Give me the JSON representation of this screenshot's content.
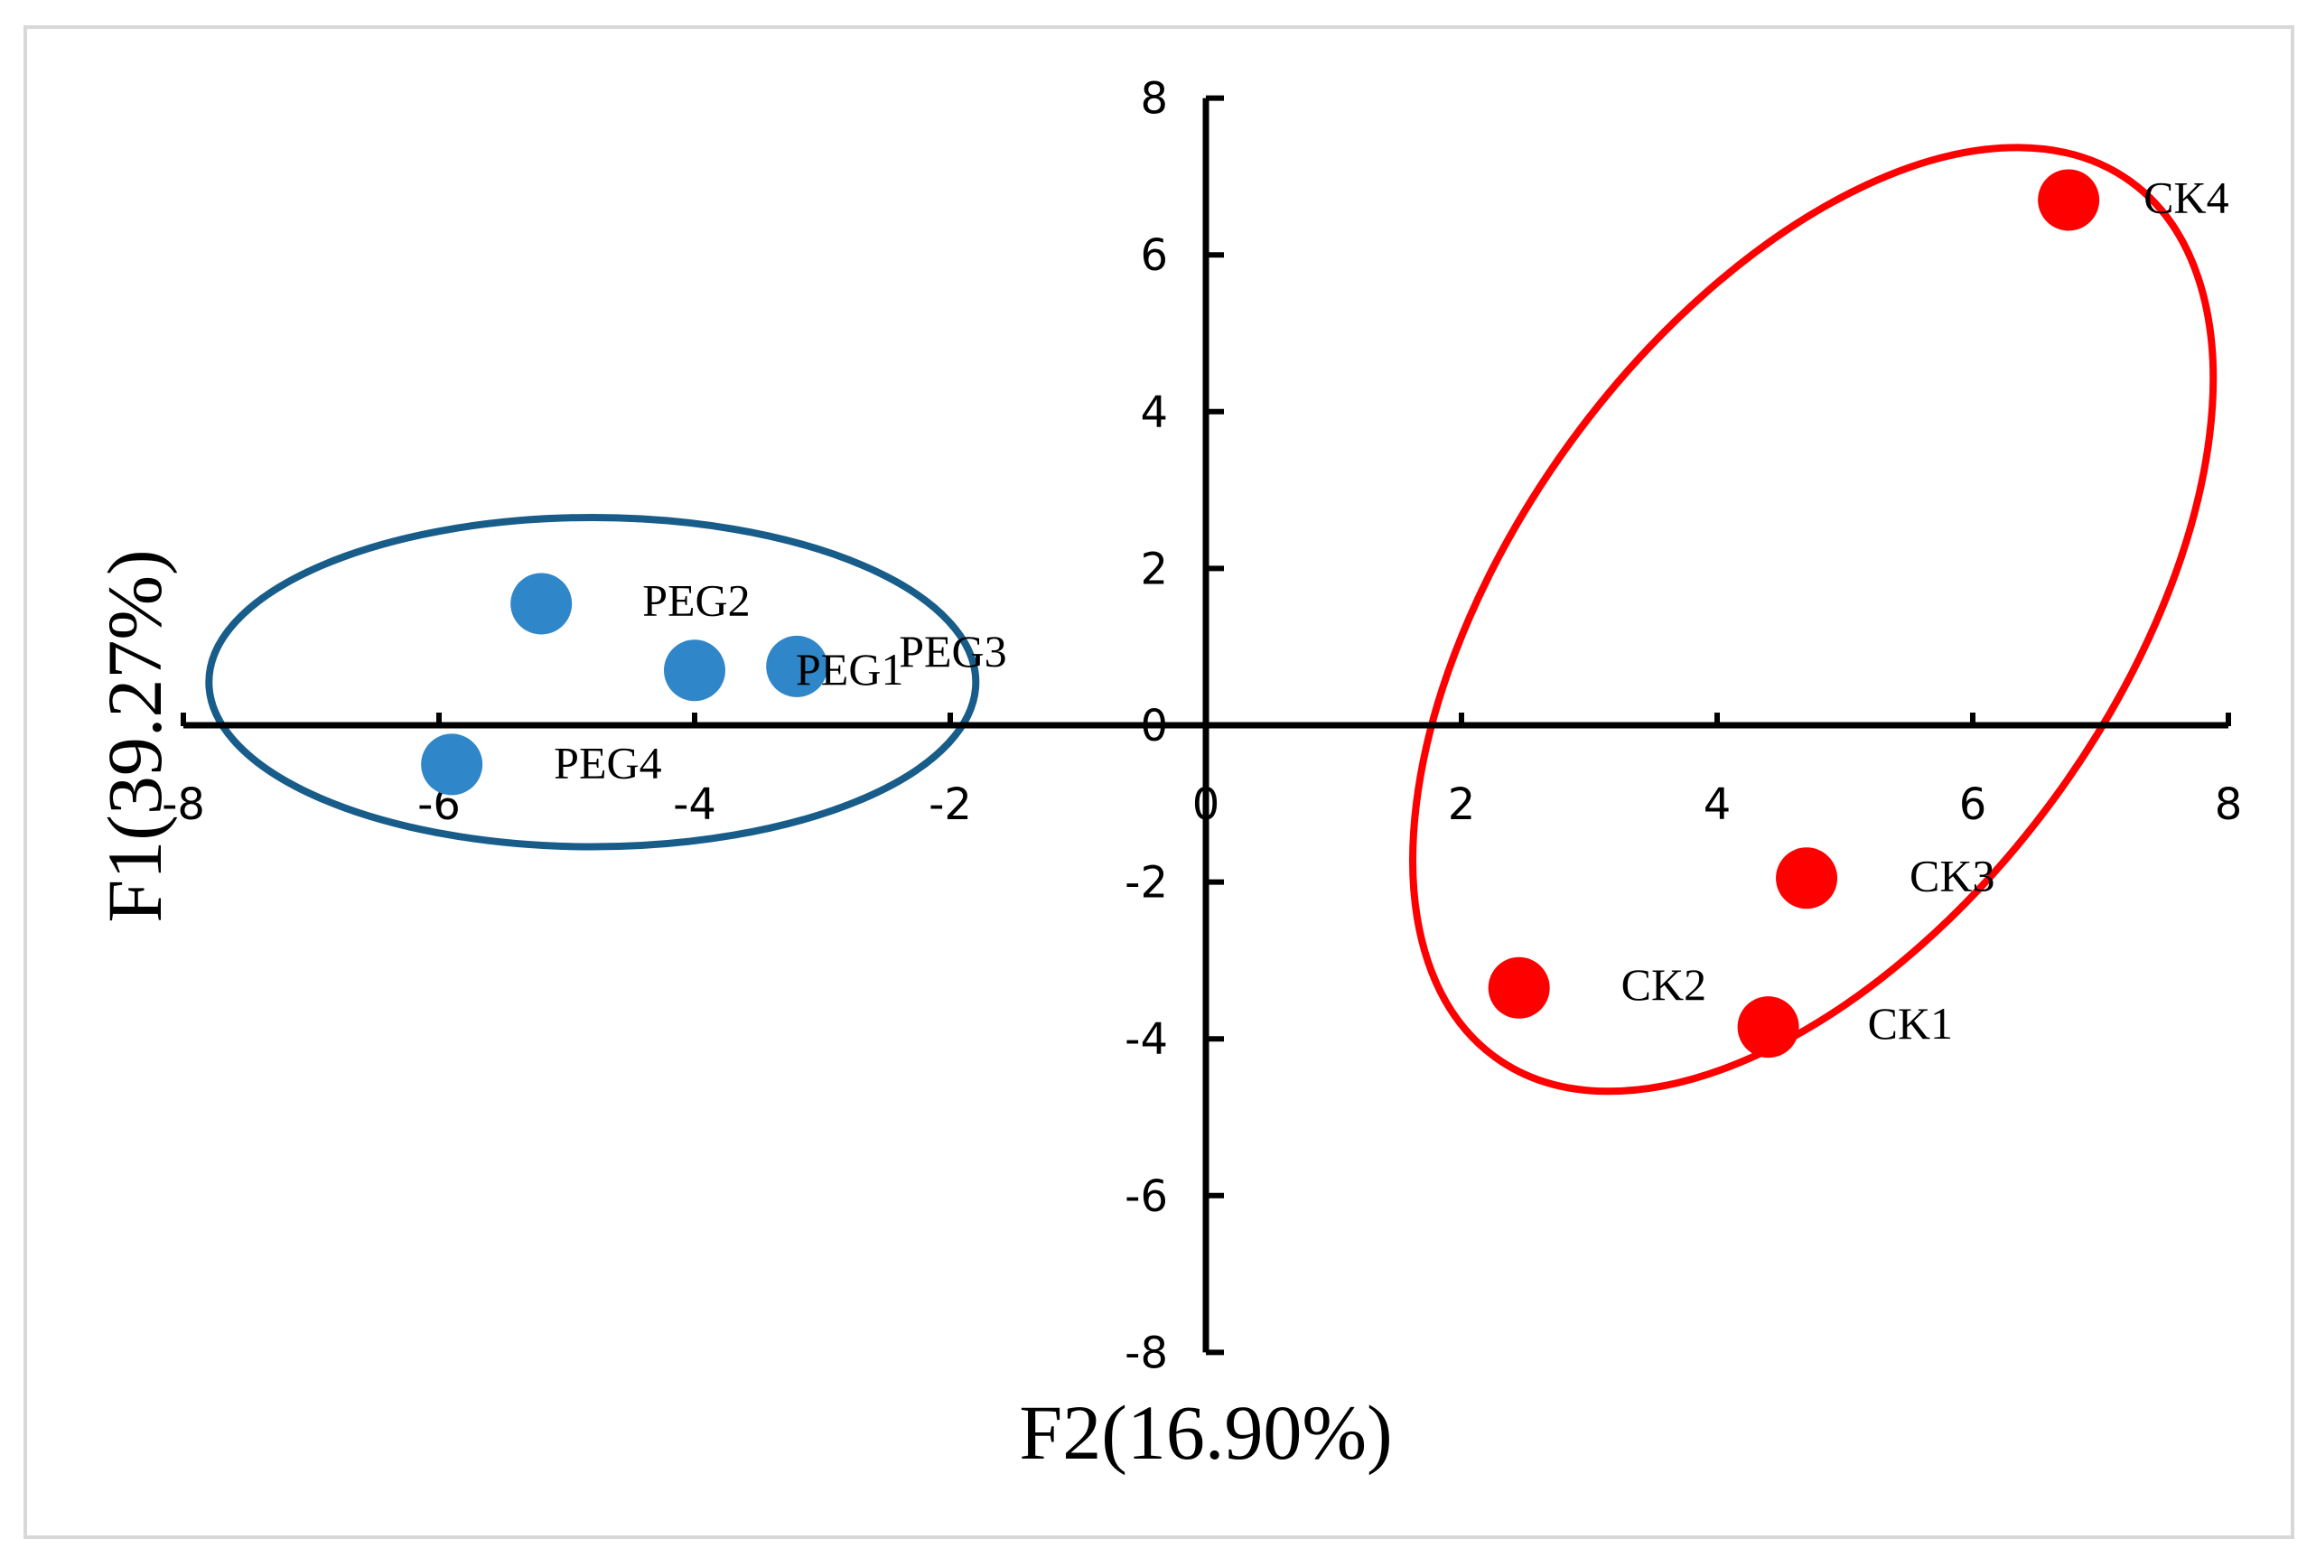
{
  "chart_data": {
    "type": "scatter",
    "xlabel": "F2(16.90%)",
    "ylabel": "F1(39.27%)",
    "xlim": [
      -8,
      8
    ],
    "ylim": [
      -8,
      8
    ],
    "x_ticks": [
      -8,
      -6,
      -4,
      -2,
      0,
      2,
      4,
      6,
      8
    ],
    "y_ticks": [
      -8,
      -6,
      -4,
      -2,
      0,
      2,
      4,
      6,
      8
    ],
    "grid": false,
    "legend": "none",
    "series": [
      {
        "color": "#2f86c8",
        "points": [
          {
            "label": "PEG2",
            "x": -5.2,
            "y": 1.55
          },
          {
            "label": "PEG1",
            "x": -4.0,
            "y": 0.7
          },
          {
            "label": "PEG3",
            "x": -3.2,
            "y": 0.75
          },
          {
            "label": "PEG4",
            "x": -5.9,
            "y": -0.5
          }
        ],
        "group_ellipse": {
          "cx": -4.8,
          "cy": 0.55,
          "rx": 3.0,
          "ry": 2.1,
          "angle": 0,
          "color": "#185d8a"
        }
      },
      {
        "color": "#ff0000",
        "points": [
          {
            "label": "CK4",
            "x": 6.75,
            "y": 6.7
          },
          {
            "label": "CK3",
            "x": 4.7,
            "y": -1.95
          },
          {
            "label": "CK2",
            "x": 2.45,
            "y": -3.35
          },
          {
            "label": "CK1",
            "x": 4.4,
            "y": -3.85
          }
        ],
        "group_ellipse": {
          "cx": 4.75,
          "cy": 1.35,
          "rx": 2.35,
          "ry": 6.9,
          "angle": 36,
          "color": "#ff0000"
        }
      }
    ]
  }
}
